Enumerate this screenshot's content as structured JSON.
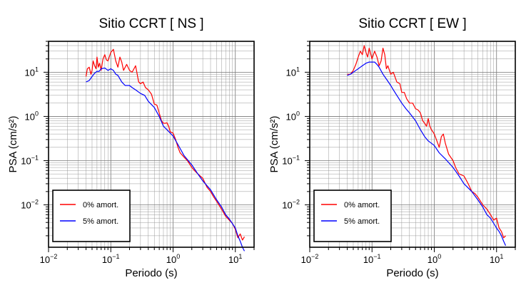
{
  "chart_data": [
    {
      "type": "line",
      "title": "Sitio CCRT [ NS ]",
      "xlabel": "Periodo (s)",
      "ylabel": "PSA (cm/s²)",
      "xscale": "log",
      "yscale": "log",
      "xlim": [
        0.01,
        20
      ],
      "ylim": [
        0.0011,
        50
      ],
      "xticks": [
        0.01,
        0.1,
        1,
        10
      ],
      "xtick_labels": [
        [
          "10",
          "−2"
        ],
        [
          "10",
          "−1"
        ],
        [
          "10",
          "0"
        ],
        [
          "10",
          "1"
        ]
      ],
      "yticks": [
        0.01,
        0.1,
        1,
        10
      ],
      "ytick_labels": [
        [
          "10",
          "−2"
        ],
        [
          "10",
          "−1"
        ],
        [
          "10",
          "0"
        ],
        [
          "10",
          "1"
        ]
      ],
      "grid": true,
      "legend_position": "bottom-left",
      "series": [
        {
          "name": "0% amort.",
          "color": "#ff0000",
          "x": [
            0.04,
            0.042,
            0.045,
            0.048,
            0.05,
            0.052,
            0.055,
            0.058,
            0.06,
            0.063,
            0.066,
            0.07,
            0.075,
            0.08,
            0.085,
            0.09,
            0.1,
            0.11,
            0.12,
            0.13,
            0.14,
            0.15,
            0.16,
            0.17,
            0.18,
            0.2,
            0.22,
            0.25,
            0.28,
            0.3,
            0.33,
            0.36,
            0.4,
            0.45,
            0.5,
            0.55,
            0.6,
            0.65,
            0.7,
            0.75,
            0.8,
            0.85,
            0.9,
            1.0,
            1.1,
            1.2,
            1.3,
            1.5,
            1.7,
            2.0,
            2.2,
            2.5,
            3.0,
            3.5,
            4.0,
            4.5,
            5.0,
            6.0,
            7.0,
            8.0,
            9.0,
            10.0,
            11.0,
            12.0,
            13.0,
            14.0
          ],
          "y": [
            8.0,
            12.0,
            13.0,
            9.0,
            11.0,
            18.0,
            14.0,
            12.0,
            22.0,
            13.0,
            16.0,
            11.0,
            20.0,
            25.0,
            19.0,
            18.0,
            28.0,
            33.0,
            18.0,
            13.0,
            22.0,
            17.0,
            11.0,
            13.0,
            15.0,
            11.0,
            10.0,
            14.0,
            6.0,
            5.5,
            6.0,
            4.5,
            4.0,
            3.2,
            1.9,
            1.8,
            1.2,
            0.8,
            0.7,
            0.7,
            0.72,
            0.6,
            0.45,
            0.42,
            0.3,
            0.2,
            0.15,
            0.12,
            0.1,
            0.07,
            0.06,
            0.05,
            0.04,
            0.025,
            0.02,
            0.015,
            0.012,
            0.008,
            0.0055,
            0.0045,
            0.0038,
            0.0028,
            0.0018,
            0.0022,
            0.0016,
            0.0019
          ]
        },
        {
          "name": "5% amort.",
          "color": "#0000ff",
          "x": [
            0.04,
            0.045,
            0.05,
            0.055,
            0.06,
            0.065,
            0.07,
            0.08,
            0.09,
            0.1,
            0.11,
            0.12,
            0.13,
            0.15,
            0.17,
            0.2,
            0.22,
            0.25,
            0.3,
            0.35,
            0.4,
            0.5,
            0.6,
            0.7,
            0.8,
            1.0,
            1.2,
            1.5,
            2.0,
            2.5,
            3.0,
            4.0,
            5.0,
            6.0,
            7.0,
            8.0,
            10.0,
            11.0,
            12.0,
            13.0,
            14.0
          ],
          "y": [
            6.0,
            6.5,
            8.0,
            9.5,
            10.5,
            10.5,
            12.0,
            12.5,
            11.0,
            12.0,
            11.0,
            9.0,
            8.5,
            6.0,
            5.0,
            5.0,
            4.5,
            4.0,
            3.3,
            3.0,
            2.2,
            1.6,
            1.0,
            0.6,
            0.5,
            0.36,
            0.23,
            0.13,
            0.08,
            0.05,
            0.035,
            0.022,
            0.013,
            0.009,
            0.006,
            0.0048,
            0.003,
            0.002,
            0.0015,
            0.0011,
            0.0009
          ]
        }
      ]
    },
    {
      "type": "line",
      "title": "Sitio CCRT [ EW ]",
      "xlabel": "Periodo (s)",
      "ylabel": "PSA (cm/s²)",
      "xscale": "log",
      "yscale": "log",
      "xlim": [
        0.01,
        20
      ],
      "ylim": [
        0.0011,
        50
      ],
      "xticks": [
        0.01,
        0.1,
        1,
        10
      ],
      "xtick_labels": [
        [
          "10",
          "−2"
        ],
        [
          "10",
          "−1"
        ],
        [
          "10",
          "0"
        ],
        [
          "10",
          "1"
        ]
      ],
      "yticks": [
        0.01,
        0.1,
        1,
        10
      ],
      "ytick_labels": [
        [
          "10",
          "−2"
        ],
        [
          "10",
          "−1"
        ],
        [
          "10",
          "0"
        ],
        [
          "10",
          "1"
        ]
      ],
      "grid": true,
      "legend_position": "bottom-left",
      "series": [
        {
          "name": "0% amort.",
          "color": "#ff0000",
          "x": [
            0.04,
            0.045,
            0.05,
            0.055,
            0.06,
            0.065,
            0.07,
            0.075,
            0.08,
            0.085,
            0.09,
            0.1,
            0.11,
            0.12,
            0.13,
            0.14,
            0.15,
            0.16,
            0.17,
            0.18,
            0.2,
            0.22,
            0.25,
            0.28,
            0.3,
            0.33,
            0.36,
            0.4,
            0.45,
            0.5,
            0.55,
            0.6,
            0.65,
            0.7,
            0.75,
            0.8,
            0.85,
            0.9,
            0.95,
            1.0,
            1.1,
            1.2,
            1.3,
            1.4,
            1.5,
            1.7,
            2.0,
            2.2,
            2.5,
            3.0,
            3.5,
            4.0,
            4.5,
            5.0,
            6.0,
            7.0,
            8.0,
            9.0,
            10.0,
            11.0,
            12.0,
            13.0,
            14.0
          ],
          "y": [
            9.0,
            9.0,
            11.0,
            15.0,
            22.0,
            30.0,
            25.0,
            40.0,
            28.0,
            22.0,
            35.0,
            20.0,
            30.0,
            22.0,
            14.0,
            18.0,
            35.0,
            25.0,
            12.0,
            14.0,
            9.0,
            10.0,
            6.0,
            5.5,
            3.5,
            3.5,
            2.5,
            2.0,
            2.0,
            1.5,
            1.4,
            1.2,
            0.8,
            0.7,
            0.6,
            0.9,
            0.6,
            0.5,
            0.45,
            0.4,
            0.28,
            0.2,
            0.35,
            0.4,
            0.25,
            0.14,
            0.1,
            0.07,
            0.05,
            0.045,
            0.03,
            0.02,
            0.018,
            0.015,
            0.01,
            0.008,
            0.006,
            0.0045,
            0.005,
            0.003,
            0.0025,
            0.0018,
            0.002
          ]
        },
        {
          "name": "5% amort.",
          "color": "#0000ff",
          "x": [
            0.04,
            0.045,
            0.05,
            0.055,
            0.06,
            0.065,
            0.07,
            0.08,
            0.09,
            0.1,
            0.11,
            0.12,
            0.13,
            0.15,
            0.17,
            0.2,
            0.22,
            0.25,
            0.3,
            0.35,
            0.4,
            0.5,
            0.6,
            0.7,
            0.8,
            1.0,
            1.2,
            1.5,
            2.0,
            2.5,
            3.0,
            4.0,
            5.0,
            6.0,
            7.0,
            8.0,
            10.0,
            11.0,
            12.0,
            13.0,
            14.0
          ],
          "y": [
            8.5,
            9.0,
            10.0,
            11.0,
            12.0,
            13.0,
            14.0,
            16.0,
            17.0,
            17.0,
            17.0,
            15.0,
            13.0,
            9.0,
            7.0,
            5.0,
            4.0,
            3.0,
            2.0,
            1.5,
            1.2,
            0.8,
            0.5,
            0.35,
            0.28,
            0.22,
            0.15,
            0.11,
            0.07,
            0.045,
            0.03,
            0.02,
            0.013,
            0.009,
            0.006,
            0.005,
            0.003,
            0.0025,
            0.002,
            0.0015,
            0.0012
          ]
        }
      ]
    }
  ]
}
